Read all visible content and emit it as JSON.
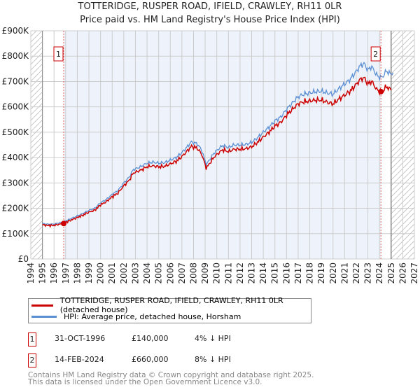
{
  "chart_data": {
    "type": "line",
    "title": "TOTTERIDGE, RUSPER ROAD, IFIELD, CRAWLEY, RH11 0LR",
    "subtitle": "Price paid vs. HM Land Registry's House Price Index (HPI)",
    "xlim": [
      1994,
      2027
    ],
    "ylim": [
      0,
      900000
    ],
    "yticks": [
      "£0",
      "£100K",
      "£200K",
      "£300K",
      "£400K",
      "£500K",
      "£600K",
      "£700K",
      "£800K",
      "£900K"
    ],
    "xticks": [
      "1994",
      "1995",
      "1996",
      "1997",
      "1998",
      "1999",
      "2000",
      "2001",
      "2002",
      "2003",
      "2004",
      "2005",
      "2006",
      "2007",
      "2008",
      "2009",
      "2010",
      "2011",
      "2012",
      "2013",
      "2014",
      "2015",
      "2016",
      "2017",
      "2018",
      "2019",
      "2020",
      "2021",
      "2022",
      "2023",
      "2024",
      "2025",
      "2026",
      "2027"
    ],
    "grid": true,
    "hpi": {
      "name": "HPI: Average price, detached house, Horsham",
      "color": "#5b8fd4",
      "x": [
        1995,
        1995.5,
        1996,
        1996.8,
        1997.5,
        1998,
        1998.5,
        1999,
        1999.5,
        2000,
        2000.5,
        2001,
        2001.5,
        2002,
        2002.5,
        2002.8,
        2003.5,
        2004,
        2004.5,
        2005,
        2005.5,
        2006,
        2006.5,
        2007,
        2007.5,
        2007.8,
        2008.3,
        2008.7,
        2009.1,
        2009.5,
        2009.8,
        2010.5,
        2011,
        2011.5,
        2012,
        2012.5,
        2013,
        2013.5,
        2014,
        2014.5,
        2015,
        2015.5,
        2016,
        2016.5,
        2017,
        2017.5,
        2018,
        2018.5,
        2019,
        2019.5,
        2020,
        2020.5,
        2021,
        2021.5,
        2022,
        2022.4,
        2022.7,
        2023,
        2023.3,
        2023.8,
        2024.2,
        2024.6,
        2024.9,
        2025.2
      ],
      "y": [
        140000,
        137000,
        138000,
        146000,
        160000,
        170000,
        180000,
        192000,
        200000,
        222000,
        235000,
        255000,
        270000,
        300000,
        325000,
        352000,
        365000,
        378000,
        382000,
        378000,
        380000,
        390000,
        400000,
        420000,
        445000,
        462000,
        455000,
        430000,
        372000,
        400000,
        420000,
        448000,
        440000,
        450000,
        450000,
        452000,
        460000,
        478000,
        500000,
        520000,
        545000,
        560000,
        590000,
        615000,
        640000,
        650000,
        655000,
        660000,
        662000,
        655000,
        650000,
        672000,
        690000,
        710000,
        740000,
        765000,
        770000,
        745000,
        760000,
        722000,
        715000,
        742000,
        730000,
        735000
      ]
    },
    "price_paid": {
      "name": "TOTTERIDGE, RUSPER ROAD, IFIELD, CRAWLEY, RH11 0LR (detached house)",
      "color": "#cc0000"
    },
    "sales": [
      {
        "label": "1",
        "x": 1996.83,
        "y": 140000
      },
      {
        "label": "2",
        "x": 2024.12,
        "y": 660000
      }
    ]
  },
  "legend": {
    "red": "TOTTERIDGE, RUSPER ROAD, IFIELD, CRAWLEY, RH11 0LR (detached house)",
    "blue": "HPI: Average price, detached house, Horsham"
  },
  "table": [
    {
      "n": "1",
      "date": "31-OCT-1996",
      "price": "£140,000",
      "hpi": "4% ↓ HPI"
    },
    {
      "n": "2",
      "date": "14-FEB-2024",
      "price": "£660,000",
      "hpi": "8% ↓ HPI"
    }
  ],
  "footer": {
    "line1": "Contains HM Land Registry data © Crown copyright and database right 2025.",
    "line2": "This data is licensed under the Open Government Licence v3.0."
  }
}
